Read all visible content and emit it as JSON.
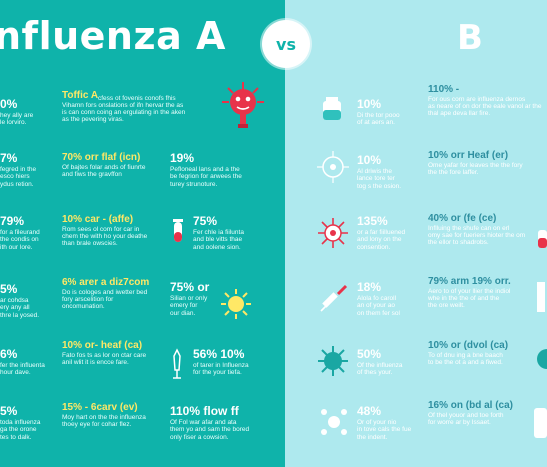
{
  "header": {
    "left_title": "nfluenza A",
    "vs_label": "vs",
    "right_title": "B"
  },
  "left_column": [
    {
      "big": "0%",
      "small": "hey ally are\nle lorviro."
    },
    {
      "big": "7%",
      "small": "fegred in the\nesco hiers\nydus retion."
    },
    {
      "big": "79%",
      "small": "for a fileurand\nthe condis on\nith our lore."
    },
    {
      "big": "5%",
      "small": "ar cohdsa\nery any all\nthre la yosed."
    },
    {
      "big": "6%",
      "small": "fer the influenta\nhour dave."
    },
    {
      "big": "5%",
      "small": "toda influenza\nga the orone\ntes to dalk."
    }
  ],
  "mid_column": [
    {
      "head": "Toffic A",
      "small": "Vihamn fors onslations of ifn hervar the as\nis can conn coing an ergulating in the aken\nas the pevering viras.",
      "extra": "cfess ot fovenis conofs fhis"
    },
    {
      "head": "70% orr flaf (icn)",
      "small": "Of bajtes folar ands of fiunrte\nand fiws the gravffon"
    },
    {
      "head": "10% car - (affe)",
      "small": "Rom sees ol com for car in\nchem the with ho your deathe\nthan brale owscies."
    },
    {
      "head": "6% arer a diz7com",
      "small": "Do is cologes and iwetter bed\nfory arscelition for\noncomunation."
    },
    {
      "head": "10% or- heaf (ca)",
      "small": "Fato fos ts as lor on ctar care\nanil wlit it is encce fare."
    },
    {
      "head": "15% - 6carv (ev)",
      "small": "Moy hart on the the influenza\nthoey eye for cohar flez."
    }
  ],
  "third_column": [
    {
      "big": "19%",
      "small": "Pefloneal lans and a the\nbe fegrion for arwees the\nturey strunoture."
    },
    {
      "big": "75%",
      "small": "Fer chle ia fiilunta\nand ble vitts thae\nand oolene sion."
    },
    {
      "big": "75% or",
      "small": "Silian or only\nemery for\nour dian."
    },
    {
      "big": "56% 10%",
      "small": "of tarer in Influenza\nfor the your tiefa."
    },
    {
      "big": "110% flow ff",
      "small": "Of Fol war afar and ata\nthem yo and sam the bored\nonly fiser a cowsion."
    }
  ],
  "right_column": [
    {
      "big": "10%",
      "small": "Di the tor pooo\nof at aers an."
    },
    {
      "big": "10%",
      "small": "Al driwis the\nlance tore ter\ntog s the osion."
    },
    {
      "big": "135%",
      "small": "or a far fiilluened\nand lony on the\nconsention."
    },
    {
      "big": "18%",
      "small": "Alola fo caroll\nan of your ao\non them fer sol"
    },
    {
      "big": "50%",
      "small": "Of the influenza\nof thes your."
    },
    {
      "big": "48%",
      "small": "Or of your nio\nin tove cals the fue\nthe indent."
    }
  ],
  "right_mid_column": [
    {
      "head": "110% -",
      "small": "For ous corn are influenza dernos\nas neare of on dor the eale vanol ar the\nthal ape deva llar fire."
    },
    {
      "head": "10% orr Heaf (er)",
      "small": "Ome yafar for leaves the the fory\nthe the fore laffer."
    },
    {
      "head": "40% or (fe (ce)",
      "small": "Inflluing the shufe can on erl\nomy sae for fueriers hioter the om\nthe ellor to shadrobs."
    },
    {
      "head": "79% arm 19% orr.",
      "small": "Aero to of your llier the indiol\nwhe in the the of and the\nthe ore weilt."
    },
    {
      "head": "10% or (dvol (ca)",
      "small": "To of dnu ing a bne baach\nto be the ot a and a fiwed."
    },
    {
      "head": "16% on (bd al (ca)",
      "small": "Of thel youor and toe forth\nfor worre ar by Issaet."
    }
  ],
  "colors": {
    "left_bg": "#0fb3aa",
    "right_bg": "#aee9ee",
    "accent_red": "#e8334a",
    "accent_yellow": "#ffe866"
  }
}
